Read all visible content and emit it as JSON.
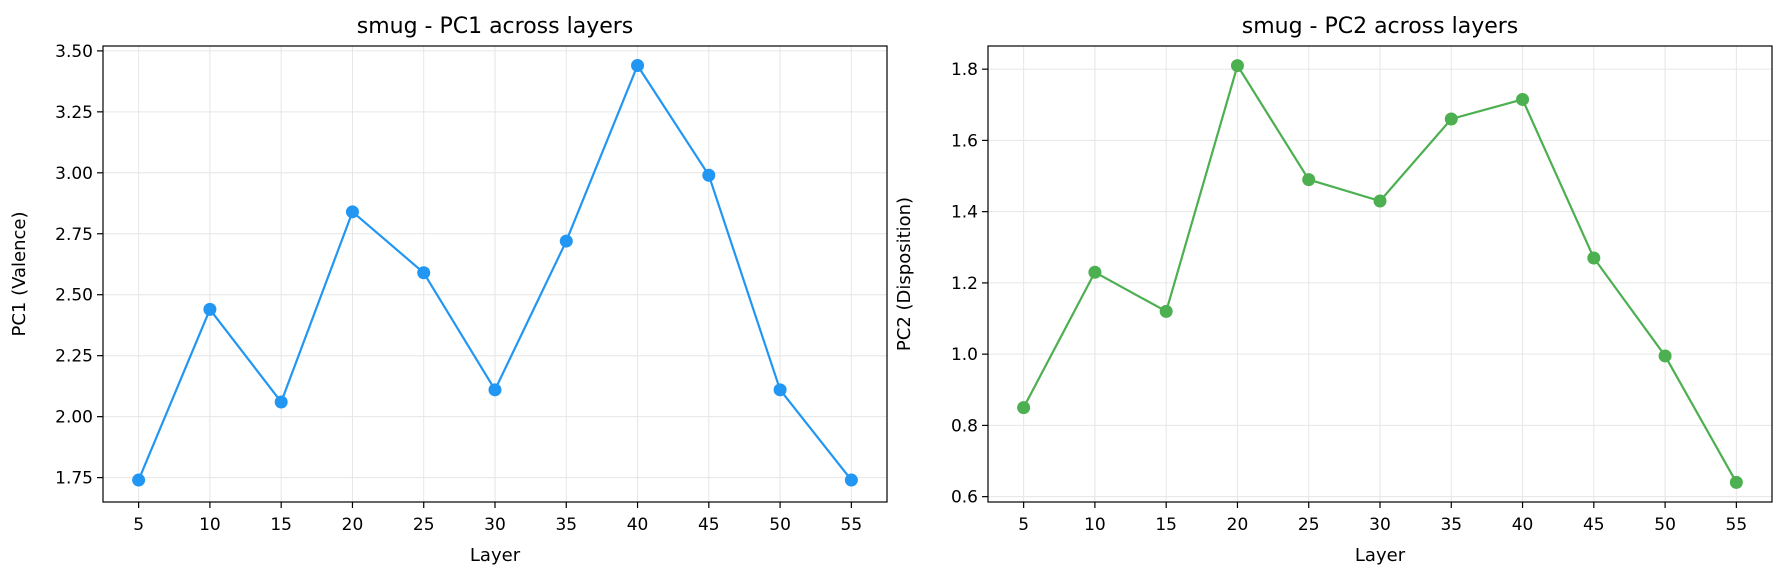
{
  "chart_data": [
    {
      "type": "line",
      "title": "smug - PC1 across layers",
      "xlabel": "Layer",
      "ylabel": "PC1 (Valence)",
      "x": [
        5,
        10,
        15,
        20,
        25,
        30,
        35,
        40,
        45,
        50,
        55
      ],
      "xticks": [
        "5",
        "10",
        "15",
        "20",
        "25",
        "30",
        "35",
        "40",
        "45",
        "50",
        "55"
      ],
      "yticks": [
        "1.75",
        "2.00",
        "2.25",
        "2.50",
        "2.75",
        "3.00",
        "3.25",
        "3.50"
      ],
      "xlim": [
        2.5,
        57.5
      ],
      "ylim": [
        1.65,
        3.52
      ],
      "grid": true,
      "series": [
        {
          "values": [
            1.74,
            2.44,
            2.06,
            2.84,
            2.59,
            2.11,
            2.72,
            3.44,
            2.99,
            2.11,
            1.74
          ],
          "color": "#2196f3"
        }
      ]
    },
    {
      "type": "line",
      "title": "smug - PC2 across layers",
      "xlabel": "Layer",
      "ylabel": "PC2 (Disposition)",
      "x": [
        5,
        10,
        15,
        20,
        25,
        30,
        35,
        40,
        45,
        50,
        55
      ],
      "xticks": [
        "5",
        "10",
        "15",
        "20",
        "25",
        "30",
        "35",
        "40",
        "45",
        "50",
        "55"
      ],
      "yticks": [
        "0.6",
        "0.8",
        "1.0",
        "1.2",
        "1.4",
        "1.6",
        "1.8"
      ],
      "xlim": [
        2.5,
        57.5
      ],
      "ylim": [
        0.585,
        1.865
      ],
      "grid": true,
      "series": [
        {
          "values": [
            0.85,
            1.23,
            1.12,
            1.81,
            1.49,
            1.43,
            1.66,
            1.715,
            1.27,
            0.995,
            0.64
          ],
          "color": "#4caf50"
        }
      ]
    }
  ]
}
